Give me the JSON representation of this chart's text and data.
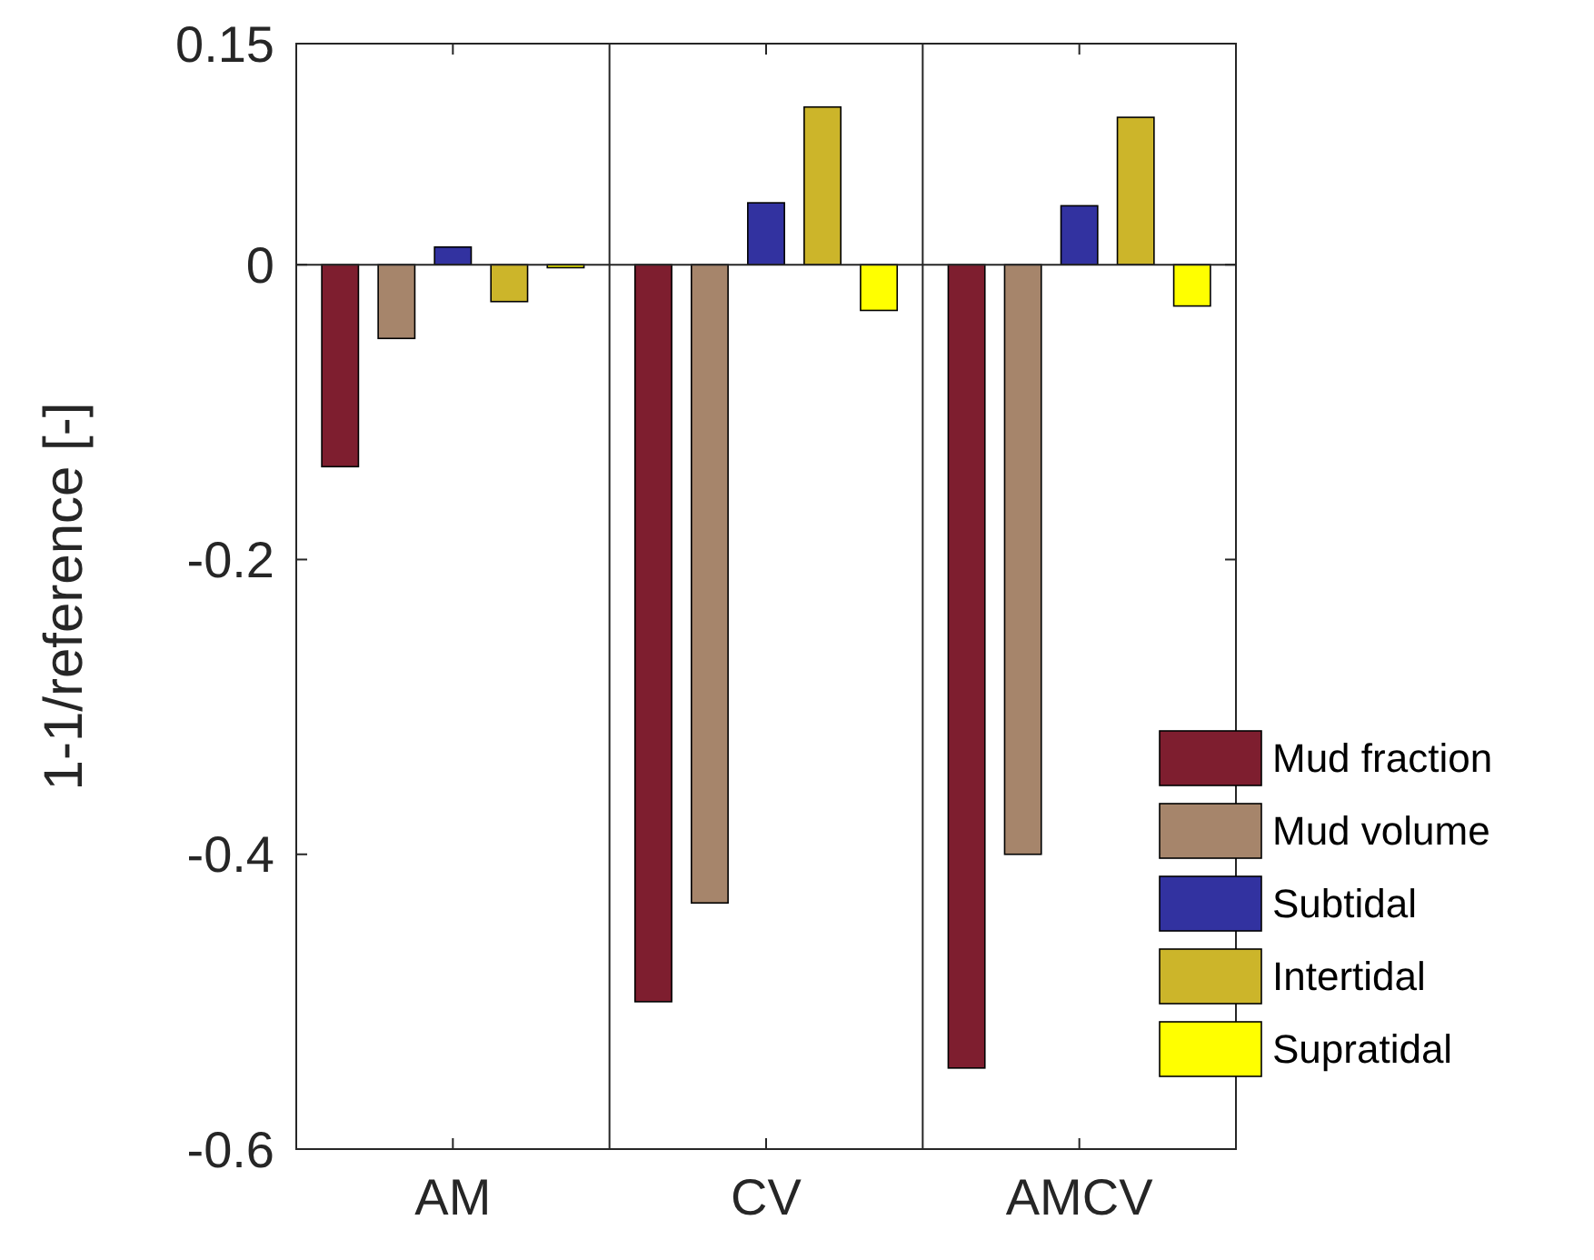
{
  "chart_data": {
    "type": "bar",
    "ylabel": "1-1/reference [-]",
    "categories": [
      "AM",
      "CV",
      "AMCV"
    ],
    "series": [
      {
        "name": "Mud fraction",
        "color": "#7e1e2f",
        "values": [
          -0.137,
          -0.5,
          -0.545
        ]
      },
      {
        "name": "Mud volume",
        "color": "#a6856b",
        "values": [
          -0.05,
          -0.433,
          -0.4
        ]
      },
      {
        "name": "Subtidal",
        "color": "#3232a0",
        "values": [
          0.012,
          0.042,
          0.04
        ]
      },
      {
        "name": "Intertidal",
        "color": "#ccb52a",
        "values": [
          -0.025,
          0.107,
          0.1
        ]
      },
      {
        "name": "Supratidal",
        "color": "#ffff00",
        "values": [
          -0.002,
          -0.031,
          -0.028
        ]
      }
    ],
    "ylim": [
      -0.6,
      0.15
    ],
    "yticks": [
      -0.6,
      -0.4,
      -0.2,
      0,
      0.15
    ],
    "legend": "bottom right"
  }
}
